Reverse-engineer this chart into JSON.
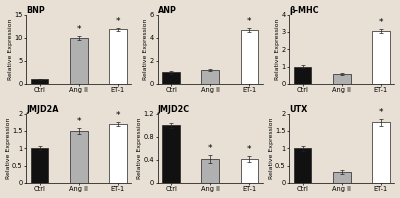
{
  "panels": [
    {
      "title": "BNP",
      "categories": [
        "Ctrl",
        "Ang II",
        "ET-1"
      ],
      "values": [
        1.0,
        10.0,
        11.8
      ],
      "errors": [
        0.15,
        0.4,
        0.4
      ],
      "colors": [
        "#111111",
        "#b0b0b0",
        "#ffffff"
      ],
      "ylim": [
        0,
        15
      ],
      "yticks": [
        0,
        5,
        10,
        15
      ],
      "sig": [
        false,
        true,
        true
      ],
      "row": 0,
      "col": 0
    },
    {
      "title": "ANP",
      "categories": [
        "Ctrl",
        "Ang II",
        "ET-1"
      ],
      "values": [
        1.0,
        1.2,
        4.7
      ],
      "errors": [
        0.1,
        0.12,
        0.18
      ],
      "colors": [
        "#111111",
        "#b0b0b0",
        "#ffffff"
      ],
      "ylim": [
        0,
        6
      ],
      "yticks": [
        0,
        2,
        4,
        6
      ],
      "sig": [
        false,
        false,
        true
      ],
      "row": 0,
      "col": 1
    },
    {
      "title": "β-MHC",
      "categories": [
        "Ctrl",
        "Ang II",
        "ET-1"
      ],
      "values": [
        1.0,
        0.55,
        3.05
      ],
      "errors": [
        0.1,
        0.06,
        0.1
      ],
      "colors": [
        "#111111",
        "#b0b0b0",
        "#ffffff"
      ],
      "ylim": [
        0,
        4
      ],
      "yticks": [
        0,
        1,
        2,
        3,
        4
      ],
      "sig": [
        false,
        false,
        true
      ],
      "row": 0,
      "col": 2
    },
    {
      "title": "JMJD2A",
      "categories": [
        "Ctrl",
        "Ang II",
        "ET-1"
      ],
      "values": [
        1.0,
        1.5,
        1.7
      ],
      "errors": [
        0.06,
        0.08,
        0.07
      ],
      "colors": [
        "#111111",
        "#b0b0b0",
        "#ffffff"
      ],
      "ylim": [
        0,
        2
      ],
      "yticks": [
        0,
        0.5,
        1.0,
        1.5,
        2.0
      ],
      "sig": [
        false,
        true,
        true
      ],
      "row": 1,
      "col": 0
    },
    {
      "title": "JMJD2C",
      "categories": [
        "Ctrl",
        "Ang II",
        "ET-1"
      ],
      "values": [
        1.0,
        0.42,
        0.42
      ],
      "errors": [
        0.04,
        0.07,
        0.05
      ],
      "colors": [
        "#111111",
        "#b0b0b0",
        "#ffffff"
      ],
      "ylim": [
        0,
        1.2
      ],
      "yticks": [
        0,
        0.4,
        0.8,
        1.2
      ],
      "sig": [
        false,
        true,
        true
      ],
      "row": 1,
      "col": 1
    },
    {
      "title": "UTX",
      "categories": [
        "Ctrl",
        "Ang II",
        "ET-1"
      ],
      "values": [
        1.0,
        0.32,
        1.75
      ],
      "errors": [
        0.07,
        0.05,
        0.1
      ],
      "colors": [
        "#111111",
        "#b0b0b0",
        "#ffffff"
      ],
      "ylim": [
        0,
        2
      ],
      "yticks": [
        0,
        0.5,
        1.0,
        1.5,
        2.0
      ],
      "sig": [
        false,
        false,
        true
      ],
      "row": 1,
      "col": 2
    }
  ],
  "ylabel": "Relative Expression",
  "bar_width": 0.45,
  "background_color": "#e8e0d4",
  "edge_color": "#222222",
  "title_fontsize": 5.8,
  "tick_fontsize": 4.8,
  "label_fontsize": 4.5,
  "star_fontsize": 6.5
}
